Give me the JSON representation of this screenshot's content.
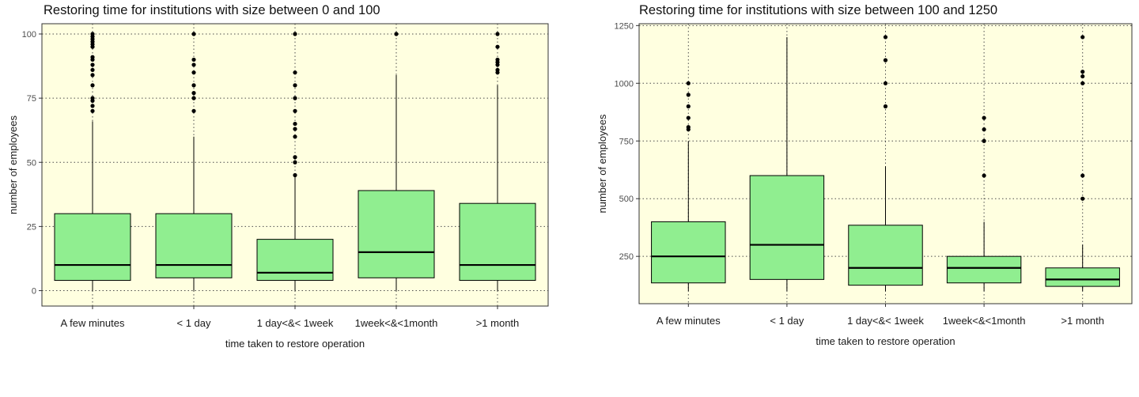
{
  "chart_data": [
    {
      "type": "box",
      "title": "Restoring time for institutions with size between 0 and 100",
      "xlabel": "time taken to restore operation",
      "ylabel": "number of employees",
      "ylim": [
        -6,
        104
      ],
      "yticks": [
        0,
        25,
        50,
        75,
        100
      ],
      "ytick_labels": [
        "0",
        "25",
        "50",
        "75",
        "100"
      ],
      "categories": [
        "A few minutes",
        "< 1 day",
        "1 day<&< 1week",
        "1week<&<1month",
        ">1 month"
      ],
      "boxes": [
        {
          "whisker_low": 0,
          "q1": 4,
          "median": 10,
          "q3": 30,
          "whisker_high": 66,
          "outliers": [
            70,
            72,
            74,
            75,
            80,
            84,
            86,
            88,
            90,
            91,
            95,
            96,
            97,
            98,
            99,
            100
          ]
        },
        {
          "whisker_low": 0,
          "q1": 5,
          "median": 10,
          "q3": 30,
          "whisker_high": 60,
          "outliers": [
            70,
            75,
            77,
            80,
            85,
            88,
            90,
            100
          ]
        },
        {
          "whisker_low": 0,
          "q1": 4,
          "median": 7,
          "q3": 20,
          "whisker_high": 45,
          "outliers": [
            45,
            50,
            52,
            60,
            63,
            65,
            70,
            75,
            80,
            85,
            100
          ]
        },
        {
          "whisker_low": 0,
          "q1": 5,
          "median": 15,
          "q3": 39,
          "whisker_high": 84,
          "outliers": [
            100
          ]
        },
        {
          "whisker_low": 0,
          "q1": 4,
          "median": 10,
          "q3": 34,
          "whisker_high": 80,
          "outliers": [
            85,
            86,
            88,
            89,
            90,
            95,
            100
          ]
        }
      ],
      "grid": true,
      "colors": {
        "panel_bg": "#ffffe0",
        "box_fill": "#90ee90",
        "grid": "#4d4d4d",
        "outlier": "#000000"
      }
    },
    {
      "type": "box",
      "title": "Restoring time for institutions with size between 100 and 1250",
      "xlabel": "time taken to restore operation",
      "ylabel": "number of employees",
      "ylim": [
        45,
        1258
      ],
      "yticks": [
        250,
        500,
        750,
        1000,
        1250
      ],
      "ytick_labels": [
        "250",
        "500",
        "750",
        "1000",
        "1250"
      ],
      "categories": [
        "A few minutes",
        "< 1 day",
        "1 day<&< 1week",
        "1week<&<1month",
        ">1 month"
      ],
      "boxes": [
        {
          "whisker_low": 100,
          "q1": 135,
          "median": 250,
          "q3": 400,
          "whisker_high": 750,
          "outliers": [
            800,
            810,
            850,
            900,
            950,
            1000
          ]
        },
        {
          "whisker_low": 100,
          "q1": 150,
          "median": 300,
          "q3": 600,
          "whisker_high": 1200,
          "outliers": []
        },
        {
          "whisker_low": 100,
          "q1": 125,
          "median": 200,
          "q3": 385,
          "whisker_high": 640,
          "outliers": [
            900,
            1000,
            1100,
            1200
          ]
        },
        {
          "whisker_low": 100,
          "q1": 135,
          "median": 200,
          "q3": 250,
          "whisker_high": 400,
          "outliers": [
            600,
            750,
            800,
            850
          ]
        },
        {
          "whisker_low": 100,
          "q1": 120,
          "median": 150,
          "q3": 200,
          "whisker_high": 300,
          "outliers": [
            500,
            600,
            1000,
            1030,
            1050,
            1200
          ]
        }
      ],
      "grid": true,
      "colors": {
        "panel_bg": "#ffffe0",
        "box_fill": "#90ee90",
        "grid": "#4d4d4d",
        "outlier": "#000000"
      }
    }
  ]
}
